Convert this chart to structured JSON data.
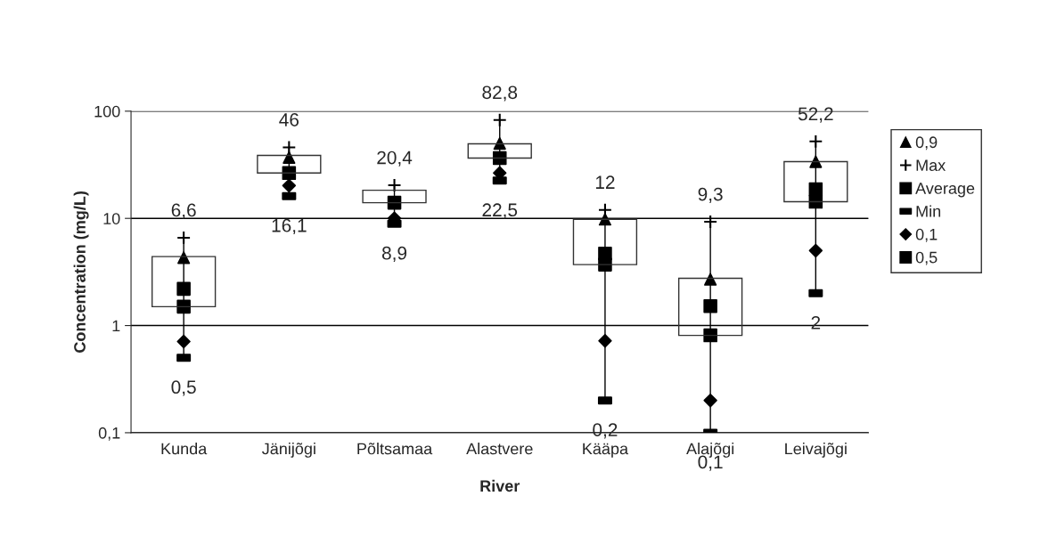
{
  "chart_data": {
    "type": "candlestick",
    "xlabel": "River",
    "ylabel": "Concentration (mg/L)",
    "categories": [
      "Kunda",
      "Jänijõgi",
      "Põltsamaa",
      "Alastvere",
      "Kääpa",
      "Alajõgi",
      "Leivajõgi"
    ],
    "ohlc": [
      [
        1.5,
        6.6,
        0.5,
        4.4
      ],
      [
        26.5,
        46,
        16.1,
        38.7
      ],
      [
        14.0,
        20.4,
        8.9,
        18.3
      ],
      [
        36.5,
        82.8,
        22.5,
        49.6
      ],
      [
        3.7,
        12,
        0.2,
        9.8
      ],
      [
        0.81,
        9.3,
        0.1,
        2.76
      ],
      [
        14.3,
        52.2,
        2,
        33.8
      ]
    ],
    "series": [
      {
        "name": "0,9",
        "type": "scatter",
        "marker": "triangle",
        "color": "#000000",
        "values": [
          4.3,
          37,
          null,
          50,
          9.8,
          2.7,
          33.8
        ]
      },
      {
        "name": "Max",
        "type": "scatter",
        "marker": "cross",
        "color": "#000000",
        "values": [
          6.6,
          46,
          20.4,
          82.8,
          12,
          9.3,
          52.2
        ],
        "value_labels": [
          "6,6",
          "46",
          "20,4",
          "82,8",
          "12",
          "9,3",
          "52,2"
        ]
      },
      {
        "name": "Average",
        "type": "scatter",
        "marker": "square",
        "color": "#000000",
        "values": [
          2.2,
          null,
          null,
          null,
          4.7,
          1.52,
          18.7
        ]
      },
      {
        "name": "Min",
        "type": "scatter",
        "color": "#000000",
        "values": [
          0.5,
          16.1,
          8.9,
          22.5,
          0.2,
          0.1,
          2
        ],
        "value_labels": [
          "0,5",
          "16,1",
          "8,9",
          "22,5",
          "0,2",
          "0,1",
          "2"
        ]
      },
      {
        "name": "0,1",
        "type": "scatter",
        "marker": "diamond",
        "color": "#000000",
        "values": [
          0.71,
          20.2,
          10,
          26.5,
          0.72,
          0.2,
          5.0
        ]
      },
      {
        "name": "0,5",
        "type": "scatter",
        "marker": "square",
        "color": "#000000",
        "values": [
          1.5,
          26.5,
          14.0,
          36.5,
          3.7,
          0.81,
          14.3
        ]
      }
    ],
    "log": true,
    "ylim": [
      0.1,
      100
    ],
    "yticks": [
      {
        "value": 0.1,
        "label": "0,1"
      },
      1,
      10,
      100
    ],
    "grid": "y",
    "legend": "right"
  }
}
